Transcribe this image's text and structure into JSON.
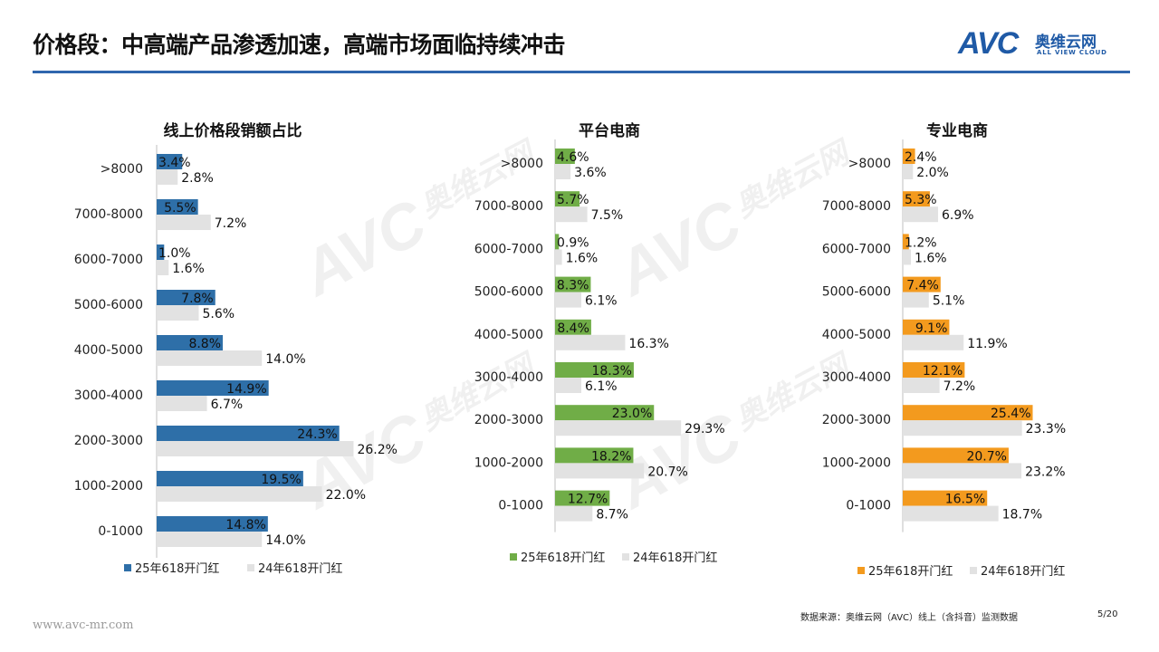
{
  "title": "价格段：中高端产品渗透加速，高端市场面临持续冲击",
  "logo": {
    "mark": "AVC",
    "cn": "奥维云网",
    "en": "ALL VIEW CLOUD"
  },
  "watermark": {
    "mark": "AVC",
    "cn": "奥维云网",
    "en": "ALL VIEW CLOUD"
  },
  "footer": {
    "url": "www.avc-mr.com",
    "source": "数据来源：奥维云网（AVC）线上（含抖音）监测数据",
    "page": "5/20"
  },
  "colors": {
    "grey": "#e2e2e2",
    "online": "#2e6fa8",
    "platform": "#70ad47",
    "professional": "#f39a1e",
    "brand": "#1f5aa6"
  },
  "chart_data": [
    {
      "type": "bar",
      "orientation": "horizontal",
      "title": "线上价格段销额占比",
      "categories": [
        ">8000",
        "7000-8000",
        "6000-7000",
        "5000-6000",
        "4000-5000",
        "3000-4000",
        "2000-3000",
        "1000-2000",
        "0-1000"
      ],
      "series": [
        {
          "name": "25年618开门红",
          "values": [
            3.4,
            5.5,
            1.0,
            7.8,
            8.8,
            14.9,
            24.3,
            19.5,
            14.8
          ],
          "labels": [
            "3.4%",
            "5.5%",
            "1.0%",
            "7.8%",
            "8.8%",
            "14.9%",
            "24.3%",
            "19.5%",
            "14.8%"
          ],
          "color": "#2e6fa8"
        },
        {
          "name": "24年618开门红",
          "values": [
            2.8,
            7.2,
            1.6,
            5.6,
            14.0,
            6.7,
            26.2,
            22.0,
            14.0
          ],
          "labels": [
            "2.8%",
            "7.2%",
            "1.6%",
            "5.6%",
            "14.0%",
            "6.7%",
            "26.2%",
            "22.0%",
            "14.0%"
          ],
          "color": "#e2e2e2"
        }
      ],
      "legend": "bottom"
    },
    {
      "type": "bar",
      "orientation": "horizontal",
      "title": "平台电商",
      "categories": [
        ">8000",
        "7000-8000",
        "6000-7000",
        "5000-6000",
        "4000-5000",
        "3000-4000",
        "2000-3000",
        "1000-2000",
        "0-1000"
      ],
      "series": [
        {
          "name": "25年618开门红",
          "values": [
            4.6,
            5.7,
            0.9,
            8.3,
            8.4,
            18.3,
            23.0,
            18.2,
            12.7
          ],
          "labels": [
            "4.6%",
            "5.7%",
            "0.9%",
            "8.3%",
            "8.4%",
            "18.3%",
            "23.0%",
            "18.2%",
            "12.7%"
          ],
          "color": "#70ad47"
        },
        {
          "name": "24年618开门红",
          "values": [
            3.6,
            7.5,
            1.6,
            6.1,
            16.3,
            6.1,
            29.3,
            20.7,
            8.7
          ],
          "labels": [
            "3.6%",
            "7.5%",
            "1.6%",
            "6.1%",
            "16.3%",
            "6.1%",
            "29.3%",
            "20.7%",
            "8.7%"
          ],
          "color": "#e2e2e2"
        }
      ],
      "legend": "bottom"
    },
    {
      "type": "bar",
      "orientation": "horizontal",
      "title": "专业电商",
      "categories": [
        ">8000",
        "7000-8000",
        "6000-7000",
        "5000-6000",
        "4000-5000",
        "3000-4000",
        "2000-3000",
        "1000-2000",
        "0-1000"
      ],
      "series": [
        {
          "name": "25年618开门红",
          "values": [
            2.4,
            5.3,
            1.2,
            7.4,
            9.1,
            12.1,
            25.4,
            20.7,
            16.5
          ],
          "labels": [
            "2.4%",
            "5.3%",
            "1.2%",
            "7.4%",
            "9.1%",
            "12.1%",
            "25.4%",
            "20.7%",
            "16.5%"
          ],
          "color": "#f39a1e"
        },
        {
          "name": "24年618开门红",
          "values": [
            2.0,
            6.9,
            1.6,
            5.1,
            11.9,
            7.2,
            23.3,
            23.2,
            18.7
          ],
          "labels": [
            "2.0%",
            "6.9%",
            "1.6%",
            "5.1%",
            "11.9%",
            "7.2%",
            "23.3%",
            "23.2%",
            "18.7%"
          ],
          "color": "#e2e2e2"
        }
      ],
      "legend": "bottom"
    }
  ]
}
